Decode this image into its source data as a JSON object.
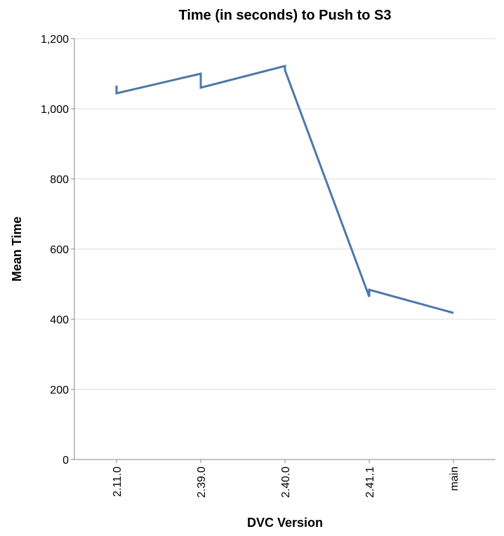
{
  "chart_data": {
    "type": "line",
    "title": "Time (in seconds) to Push to S3",
    "xlabel": "DVC Version",
    "ylabel": "Mean Time",
    "categories": [
      "2.11.0",
      "2.39.0",
      "2.40.0",
      "2.41.1",
      "main"
    ],
    "points": [
      {
        "x": "2.11.0",
        "y": 1066
      },
      {
        "x": "2.11.0",
        "y": 1044
      },
      {
        "x": "2.39.0",
        "y": 1100
      },
      {
        "x": "2.39.0",
        "y": 1060
      },
      {
        "x": "2.40.0",
        "y": 1122
      },
      {
        "x": "2.40.0",
        "y": 1110
      },
      {
        "x": "2.41.1",
        "y": 464
      },
      {
        "x": "2.41.1",
        "y": 484
      },
      {
        "x": "main",
        "y": 418
      }
    ],
    "ylim": [
      0,
      1200
    ],
    "yticks": [
      0,
      200,
      400,
      600,
      800,
      1000,
      1200
    ],
    "ytick_labels": [
      "0",
      "200",
      "400",
      "600",
      "800",
      "1,000",
      "1,200"
    ],
    "grid": true,
    "color": "#4c78a8"
  }
}
